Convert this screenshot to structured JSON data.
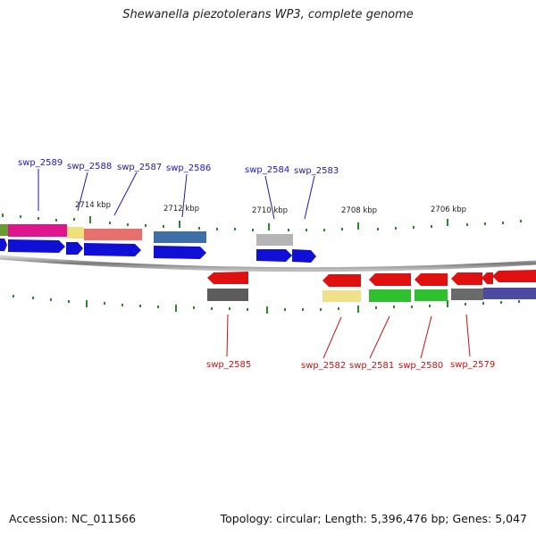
{
  "title": "Shewanella piezotolerans WP3, complete genome",
  "footer": {
    "accession": "Accession: NC_011566",
    "info": "Topology: circular; Length: 5,396,476 bp; Genes: 5,047"
  },
  "kbp_ticks": [
    "2714 kbp",
    "2712 kbp",
    "2710 kbp",
    "2708 kbp",
    "2706 kbp"
  ],
  "genes_forward": [
    "swp_2589",
    "swp_2588",
    "swp_2587",
    "swp_2586",
    "swp_2584",
    "swp_2583"
  ],
  "genes_reverse": [
    "swp_2585",
    "swp_2582",
    "swp_2581",
    "swp_2580",
    "swp_2579"
  ],
  "colors": {
    "forward_label": "#1a1ab4",
    "reverse_label": "#cc1111",
    "cds_forward": "#0f0fd6",
    "cds_reverse": "#e01010",
    "tick": "#2a8a2a",
    "backbone": "#8a8a8a"
  }
}
